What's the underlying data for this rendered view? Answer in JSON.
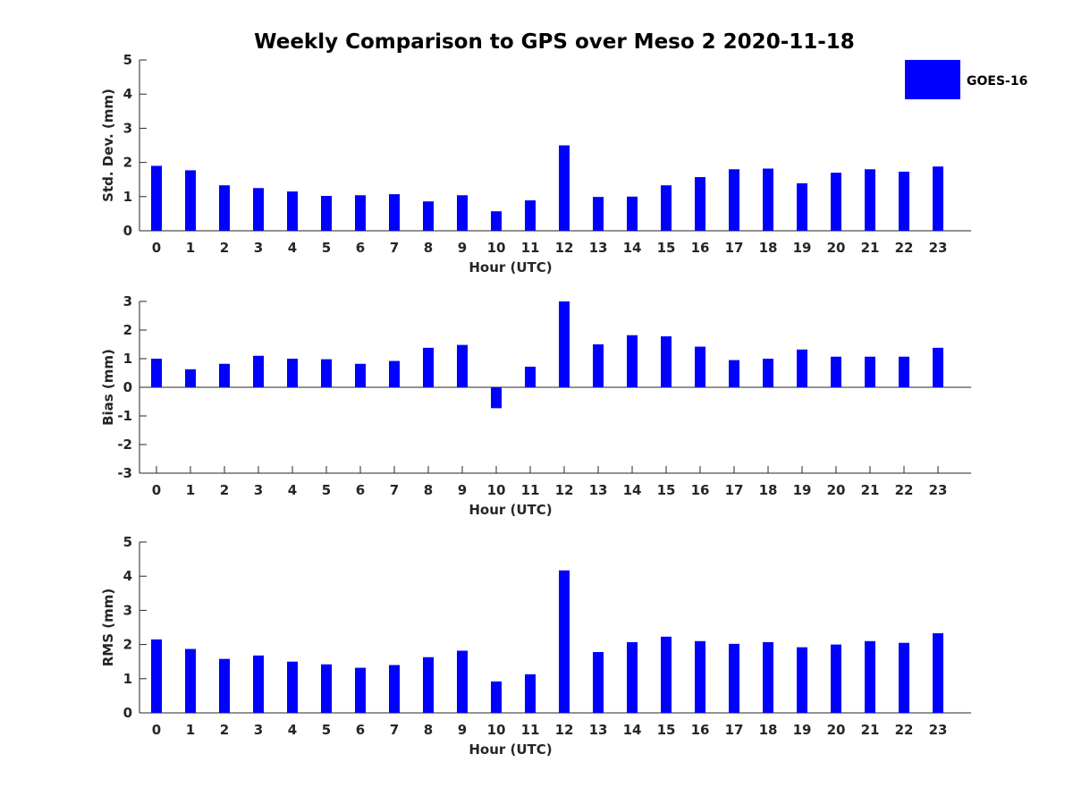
{
  "chart_data": {
    "type": "bar",
    "title": "Weekly Comparison to GPS over Meso 2 2020-11-18",
    "legend": {
      "position": "top-right",
      "entries": [
        "GOES-16"
      ]
    },
    "series_color": "#0000FF",
    "categories": [
      "0",
      "1",
      "2",
      "3",
      "4",
      "5",
      "6",
      "7",
      "8",
      "9",
      "10",
      "11",
      "12",
      "13",
      "14",
      "15",
      "16",
      "17",
      "18",
      "19",
      "20",
      "21",
      "22",
      "23"
    ],
    "panels": [
      {
        "xlabel": "Hour (UTC)",
        "ylabel": "Std. Dev. (mm)",
        "ylim": [
          0,
          5
        ],
        "yticks": [
          "0",
          "1",
          "2",
          "3",
          "4",
          "5"
        ],
        "series": [
          {
            "name": "GOES-16",
            "values": [
              1.9,
              1.77,
              1.33,
              1.25,
              1.15,
              1.02,
              1.04,
              1.07,
              0.86,
              1.04,
              0.57,
              0.89,
              2.5,
              0.99,
              1.0,
              1.33,
              1.57,
              1.8,
              1.82,
              1.39,
              1.7,
              1.8,
              1.73,
              1.88
            ]
          }
        ]
      },
      {
        "xlabel": "Hour (UTC)",
        "ylabel": "Bias (mm)",
        "ylim": [
          -3,
          3
        ],
        "yticks": [
          "-3",
          "-2",
          "-1",
          "0",
          "1",
          "2",
          "3"
        ],
        "series": [
          {
            "name": "GOES-16",
            "values": [
              1.0,
              0.63,
              0.82,
              1.1,
              1.0,
              0.98,
              0.82,
              0.92,
              1.38,
              1.48,
              -0.73,
              0.72,
              3.0,
              1.5,
              1.82,
              1.78,
              1.42,
              0.95,
              1.0,
              1.32,
              1.07,
              1.07,
              1.07,
              1.38
            ]
          }
        ]
      },
      {
        "xlabel": "Hour (UTC)",
        "ylabel": "RMS (mm)",
        "ylim": [
          0,
          5
        ],
        "yticks": [
          "0",
          "1",
          "2",
          "3",
          "4",
          "5"
        ],
        "series": [
          {
            "name": "GOES-16",
            "values": [
              2.15,
              1.87,
              1.58,
              1.68,
              1.5,
              1.42,
              1.32,
              1.4,
              1.63,
              1.82,
              0.92,
              1.13,
              4.17,
              1.78,
              2.07,
              2.23,
              2.1,
              2.02,
              2.07,
              1.92,
              2.0,
              2.1,
              2.05,
              2.33
            ]
          }
        ]
      }
    ]
  }
}
